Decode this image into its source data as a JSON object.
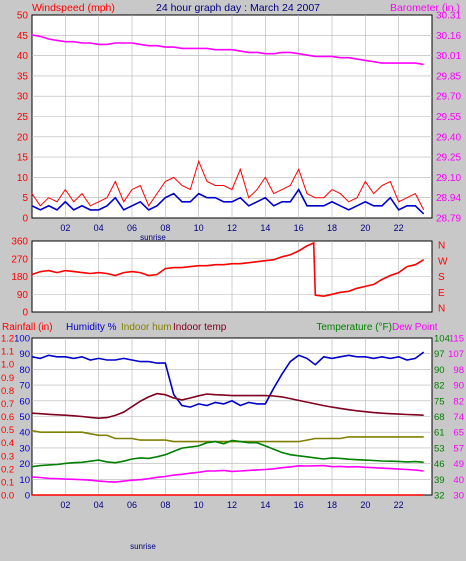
{
  "header": {
    "left_label": "Windspeed (mph)",
    "title": "24 hour graph day : March 24 2007",
    "right_label": "Barometer (in.)"
  },
  "colors": {
    "background": "#c8c8c8",
    "plot_bg": "#ffffff",
    "grid": "#b4b4b4",
    "wind_gust": "#ff0000",
    "wind_avg": "#0000cc",
    "barometer": "#ff00ff",
    "direction": "#ff0000",
    "rain_axis": "#ff0000",
    "humidity": "#0000cc",
    "indoor_hum": "#808000",
    "indoor_temp": "#800020",
    "temperature": "#008000",
    "dew_point": "#ff00ff"
  },
  "x_ticks": [
    "02",
    "04",
    "06",
    "08",
    "10",
    "12",
    "14",
    "16",
    "18",
    "20",
    "22"
  ],
  "sunrise_label": "sunrise",
  "chart_data": [
    {
      "type": "line",
      "panel": "wind-barometer",
      "title": "24 hour graph day : March 24 2007",
      "xlabel": "",
      "ylabel": "Windspeed (mph)",
      "y2label": "Barometer (in.)",
      "xlim": [
        0,
        24
      ],
      "ylim": [
        0,
        50
      ],
      "y_ticks": [
        0,
        5,
        10,
        15,
        20,
        25,
        30,
        35,
        40,
        45,
        50
      ],
      "y2lim": [
        28.79,
        30.31
      ],
      "y2_ticks": [
        "28.79",
        "28.94",
        "29.10",
        "29.25",
        "29.40",
        "29.55",
        "29.70",
        "29.85",
        "30.01",
        "30.16",
        "30.31"
      ],
      "x": [
        0,
        0.5,
        1,
        1.5,
        2,
        2.5,
        3,
        3.5,
        4,
        4.5,
        5,
        5.5,
        6,
        6.5,
        7,
        7.5,
        8,
        8.5,
        9,
        9.5,
        10,
        10.5,
        11,
        11.5,
        12,
        12.5,
        13,
        13.5,
        14,
        14.5,
        15,
        15.5,
        16,
        16.5,
        17,
        17.5,
        18,
        18.5,
        19,
        19.5,
        20,
        20.5,
        21,
        21.5,
        22,
        22.5,
        23,
        23.5
      ],
      "series": [
        {
          "name": "gust",
          "axis": "left",
          "values": [
            6,
            3,
            5,
            4,
            7,
            4,
            6,
            3,
            4,
            5,
            9,
            4,
            7,
            8,
            3,
            6,
            9,
            10,
            8,
            7,
            14,
            9,
            8,
            8,
            7,
            12,
            5,
            7,
            10,
            6,
            7,
            8,
            12,
            6,
            5,
            5,
            7,
            6,
            4,
            5,
            9,
            6,
            8,
            9,
            4,
            5,
            6,
            2
          ]
        },
        {
          "name": "average",
          "axis": "left",
          "values": [
            3,
            2,
            3,
            2,
            4,
            2,
            3,
            2,
            2,
            3,
            5,
            2,
            3,
            4,
            2,
            3,
            5,
            6,
            4,
            4,
            6,
            5,
            5,
            4,
            4,
            5,
            3,
            4,
            5,
            3,
            4,
            4,
            7,
            3,
            3,
            3,
            4,
            3,
            2,
            3,
            4,
            3,
            3,
            5,
            2,
            3,
            3,
            1
          ]
        },
        {
          "name": "barometer",
          "axis": "right",
          "values": [
            30.16,
            30.15,
            30.13,
            30.12,
            30.11,
            30.11,
            30.1,
            30.1,
            30.09,
            30.09,
            30.1,
            30.1,
            30.1,
            30.09,
            30.08,
            30.08,
            30.07,
            30.07,
            30.06,
            30.06,
            30.06,
            30.06,
            30.05,
            30.05,
            30.05,
            30.04,
            30.03,
            30.03,
            30.02,
            30.02,
            30.03,
            30.03,
            30.02,
            30.01,
            30.0,
            30.0,
            30.0,
            29.99,
            29.99,
            29.98,
            29.97,
            29.96,
            29.95,
            29.95,
            29.95,
            29.95,
            29.95,
            29.94
          ]
        }
      ]
    },
    {
      "type": "line",
      "panel": "direction",
      "xlim": [
        0,
        24
      ],
      "ylim": [
        0,
        360
      ],
      "y_ticks": [
        0,
        90,
        180,
        270,
        360
      ],
      "y2_ticks": [
        "N",
        "E",
        "S",
        "W",
        "N"
      ],
      "x": [
        0,
        0.5,
        1,
        1.5,
        2,
        2.5,
        3,
        3.5,
        4,
        4.5,
        5,
        5.5,
        6,
        6.5,
        7,
        7.5,
        8,
        8.5,
        9,
        9.5,
        10,
        10.5,
        11,
        11.5,
        12,
        12.5,
        13,
        13.5,
        14,
        14.5,
        15,
        15.5,
        16,
        16.5,
        16.9,
        17,
        17.5,
        18,
        18.5,
        19,
        19.5,
        20,
        20.5,
        21,
        21.5,
        22,
        22.5,
        23,
        23.5
      ],
      "series": [
        {
          "name": "wind direction",
          "values": [
            190,
            205,
            210,
            200,
            210,
            205,
            200,
            195,
            200,
            195,
            185,
            200,
            205,
            200,
            185,
            190,
            220,
            225,
            225,
            230,
            235,
            235,
            240,
            240,
            245,
            245,
            250,
            255,
            260,
            265,
            280,
            290,
            310,
            335,
            350,
            85,
            80,
            90,
            100,
            105,
            120,
            130,
            140,
            165,
            185,
            200,
            230,
            240,
            265
          ]
        }
      ]
    },
    {
      "type": "line",
      "panel": "humidity-temperature",
      "legend": [
        "Rainfall (in)",
        "Humidity %",
        "Indoor hum",
        "Indoor temp",
        "Temperature (°F)",
        "Dew Point"
      ],
      "xlim": [
        0,
        24
      ],
      "rain_ticks": [
        "0.0",
        "0.1",
        "0.2",
        "0.3",
        "0.4",
        "0.5",
        "0.6",
        "0.7",
        "0.8",
        "0.9",
        "1.0",
        "1.1",
        "1.2"
      ],
      "hum_ticks": [
        0,
        10,
        20,
        30,
        40,
        50,
        60,
        70,
        80,
        90,
        100
      ],
      "temp_ticks": [
        32,
        39,
        46,
        53,
        61,
        68,
        75,
        82,
        90,
        97,
        104
      ],
      "dew_ticks": [
        30,
        40,
        49,
        57,
        65,
        74,
        82,
        90,
        98,
        107,
        115
      ],
      "x": [
        0,
        0.5,
        1,
        1.5,
        2,
        2.5,
        3,
        3.5,
        4,
        4.5,
        5,
        5.5,
        6,
        6.5,
        7,
        7.5,
        8,
        8.5,
        9,
        9.5,
        10,
        10.5,
        11,
        11.5,
        12,
        12.5,
        13,
        13.5,
        14,
        14.5,
        15,
        15.5,
        16,
        16.5,
        17,
        17.5,
        18,
        18.5,
        19,
        19.5,
        20,
        20.5,
        21,
        21.5,
        22,
        22.5,
        23,
        23.5
      ],
      "series": [
        {
          "name": "Rainfall (in)",
          "axis": "rain",
          "values": [
            0,
            0,
            0,
            0,
            0,
            0,
            0,
            0,
            0,
            0,
            0,
            0,
            0,
            0,
            0,
            0,
            0,
            0,
            0,
            0,
            0,
            0,
            0,
            0,
            0,
            0,
            0,
            0,
            0,
            0,
            0,
            0,
            0,
            0,
            0,
            0,
            0,
            0,
            0,
            0,
            0,
            0,
            0,
            0,
            0,
            0,
            0,
            0
          ]
        },
        {
          "name": "Humidity %",
          "axis": "hum",
          "values": [
            88,
            87,
            89,
            88,
            88,
            87,
            88,
            86,
            87,
            86,
            86,
            87,
            86,
            85,
            85,
            84,
            84,
            64,
            57,
            56,
            58,
            57,
            59,
            58,
            60,
            57,
            59,
            58,
            58,
            68,
            77,
            85,
            89,
            87,
            83,
            88,
            87,
            88,
            89,
            88,
            88,
            87,
            88,
            87,
            88,
            86,
            87,
            91
          ]
        },
        {
          "name": "Indoor hum",
          "axis": "hum",
          "values": [
            41,
            40,
            40,
            40,
            40,
            40,
            40,
            39,
            38,
            38,
            36,
            36,
            36,
            35,
            35,
            35,
            35,
            34,
            34,
            34,
            34,
            34,
            34,
            34,
            34,
            34,
            34,
            34,
            34,
            34,
            34,
            34,
            34,
            35,
            36,
            36,
            36,
            36,
            37,
            37,
            37,
            37,
            37,
            37,
            37,
            37,
            37,
            37
          ]
        },
        {
          "name": "Indoor temp",
          "axis": "temp",
          "values": [
            69.5,
            69.3,
            69.0,
            68.8,
            68.6,
            68.3,
            68.0,
            67.6,
            67.2,
            67.5,
            68.5,
            70,
            72.5,
            75,
            77,
            78.5,
            78,
            76.5,
            75.6,
            76.5,
            77.5,
            78.3,
            78.0,
            77.8,
            77.6,
            77.6,
            77.6,
            77.6,
            77.6,
            77.4,
            77.0,
            76.2,
            75.4,
            74.6,
            73.8,
            73.0,
            72.3,
            71.7,
            71.1,
            70.6,
            70.2,
            69.8,
            69.5,
            69.3,
            69.1,
            68.9,
            68.8,
            68.6
          ]
        },
        {
          "name": "Temperature (°F)",
          "axis": "temp",
          "values": [
            45,
            45.5,
            45.8,
            46,
            46.5,
            46.8,
            47,
            47.5,
            48,
            47.2,
            46.8,
            47.5,
            48.5,
            49,
            48.8,
            49.5,
            50.5,
            52,
            53.5,
            54,
            54.5,
            56,
            56.5,
            55.5,
            57,
            56.5,
            56,
            56,
            54.5,
            53,
            51.5,
            50.5,
            50,
            49.5,
            49,
            48.5,
            49,
            48.8,
            48.4,
            48.2,
            48,
            47.8,
            47.6,
            47.5,
            47.4,
            47.2,
            47.3,
            47
          ]
        },
        {
          "name": "Dew Point",
          "axis": "dew",
          "values": [
            39.8,
            39.5,
            39.0,
            38.8,
            38.6,
            38.5,
            38.3,
            38.0,
            37.5,
            37.2,
            37.0,
            37.5,
            38.0,
            38.3,
            38.8,
            39.6,
            40.0,
            40.8,
            41.2,
            41.8,
            42.3,
            43.0,
            43.0,
            43.3,
            42.8,
            43.0,
            43.3,
            43.6,
            43.8,
            44.2,
            44.8,
            45.2,
            45.8,
            45.7,
            45.8,
            45.9,
            45.3,
            45.5,
            45.2,
            45.3,
            45.0,
            44.8,
            44.5,
            44.3,
            44.0,
            43.8,
            43.5,
            43.0
          ]
        }
      ]
    }
  ]
}
